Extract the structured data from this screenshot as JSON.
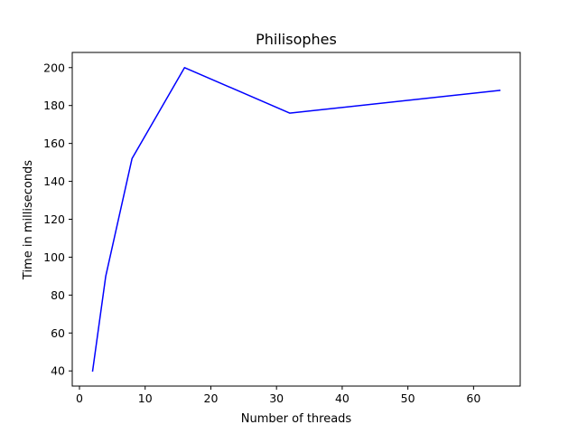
{
  "chart_data": {
    "type": "line",
    "title": "Philisophes",
    "xlabel": "Number of threads",
    "ylabel": "Time in milliseconds",
    "x": [
      2,
      4,
      8,
      16,
      32,
      64
    ],
    "series": [
      {
        "values": [
          40,
          90,
          152,
          200,
          176,
          188
        ],
        "color": "#0000ff"
      }
    ],
    "xlim": [
      -1.1,
      67.1
    ],
    "ylim": [
      32,
      208
    ],
    "xticks": [
      0,
      10,
      20,
      30,
      40,
      50,
      60
    ],
    "yticks": [
      40,
      60,
      80,
      100,
      120,
      140,
      160,
      180,
      200
    ],
    "grid": false
  }
}
